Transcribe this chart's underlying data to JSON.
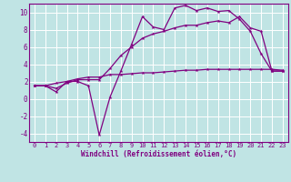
{
  "x": [
    0,
    1,
    2,
    3,
    4,
    5,
    6,
    7,
    8,
    9,
    10,
    11,
    12,
    13,
    14,
    15,
    16,
    17,
    18,
    19,
    20,
    21,
    22,
    23
  ],
  "line1": [
    1.5,
    1.5,
    0.8,
    2.0,
    2.0,
    1.5,
    -4.2,
    0.2,
    3.2,
    6.3,
    9.5,
    8.3,
    8.0,
    10.5,
    10.8,
    10.2,
    10.5,
    10.1,
    10.2,
    9.2,
    7.8,
    5.2,
    3.2,
    3.2
  ],
  "line2": [
    1.5,
    1.5,
    1.2,
    1.8,
    2.2,
    2.2,
    2.2,
    3.5,
    5.0,
    6.0,
    7.0,
    7.5,
    7.8,
    8.2,
    8.5,
    8.5,
    8.8,
    9.0,
    8.8,
    9.5,
    8.2,
    7.8,
    3.2,
    3.2
  ],
  "line3": [
    1.5,
    1.5,
    1.8,
    2.0,
    2.3,
    2.5,
    2.5,
    2.8,
    2.8,
    2.9,
    3.0,
    3.0,
    3.1,
    3.2,
    3.3,
    3.3,
    3.4,
    3.4,
    3.4,
    3.4,
    3.4,
    3.4,
    3.4,
    3.3
  ],
  "color": "#800080",
  "bg_color": "#c0e4e4",
  "grid_color": "#ffffff",
  "xlabel": "Windchill (Refroidissement éolien,°C)",
  "ylim": [
    -5,
    11
  ],
  "xlim": [
    -0.5,
    23.5
  ],
  "yticks": [
    -4,
    -2,
    0,
    2,
    4,
    6,
    8,
    10
  ],
  "xticks": [
    0,
    1,
    2,
    3,
    4,
    5,
    6,
    7,
    8,
    9,
    10,
    11,
    12,
    13,
    14,
    15,
    16,
    17,
    18,
    19,
    20,
    21,
    22,
    23
  ],
  "marker_size": 3,
  "line_width": 0.9,
  "tick_fontsize": 5.0,
  "xlabel_fontsize": 5.5
}
